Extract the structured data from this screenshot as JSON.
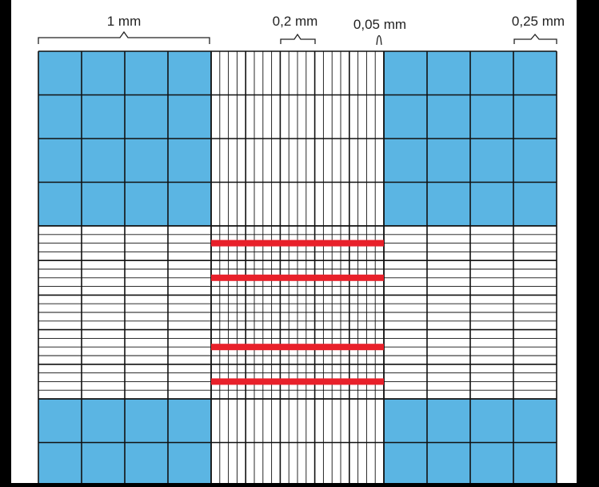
{
  "labels": {
    "large_square": "1 mm",
    "medium_square": "0,2 mm",
    "small_square": "0,05 mm",
    "corner_square": "0,25 mm"
  },
  "colors": {
    "blue_fill": "#5bb5e3",
    "red_band": "#e8202a",
    "grid_line": "#111111",
    "background": "#ffffff",
    "frame": "#000000"
  }
}
